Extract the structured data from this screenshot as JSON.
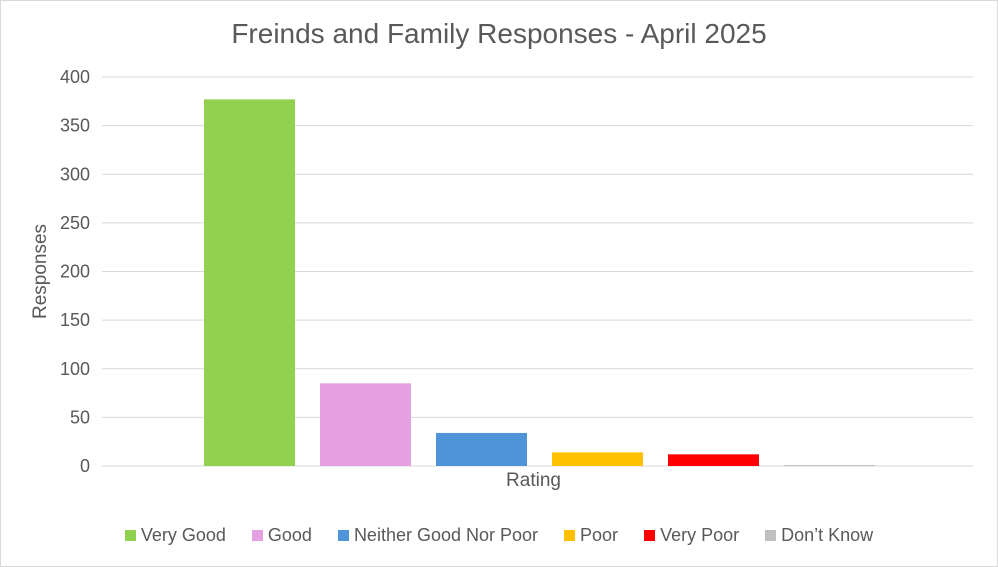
{
  "chart_data": {
    "type": "bar",
    "title": "Freinds and Family Responses - April 2025",
    "xlabel": "Rating",
    "ylabel": "Responses",
    "ylim": [
      0,
      400
    ],
    "yticks": [
      0,
      50,
      100,
      150,
      200,
      250,
      300,
      350,
      400
    ],
    "grid": true,
    "legend_position": "bottom",
    "series": [
      {
        "name": "Very Good",
        "values": [
          377
        ],
        "color": "#92d050"
      },
      {
        "name": "Good",
        "values": [
          85
        ],
        "color": "#e4a0e0"
      },
      {
        "name": "Neither Good Nor Poor",
        "values": [
          34
        ],
        "color": "#4f94d8"
      },
      {
        "name": "Poor",
        "values": [
          14
        ],
        "color": "#ffc000"
      },
      {
        "name": "Very Poor",
        "values": [
          12
        ],
        "color": "#ff0000"
      },
      {
        "name": "Don’t Know",
        "values": [
          1
        ],
        "color": "#bfbfbf"
      }
    ]
  }
}
